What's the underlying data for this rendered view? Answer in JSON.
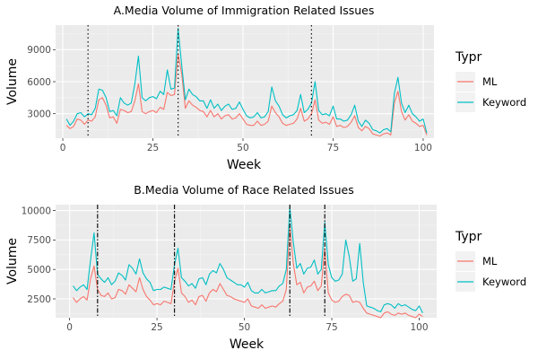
{
  "chart_data": [
    {
      "type": "line",
      "title": "A.Media Volume of Immigration Related Issues",
      "xlabel": "Week",
      "ylabel": "Volume",
      "xlim": [
        -2,
        103
      ],
      "ylim": [
        700,
        11300
      ],
      "xticks": [
        0,
        25,
        50,
        75,
        100
      ],
      "yticks": [
        3000,
        6000,
        9000
      ],
      "legend_title": "Typr",
      "legend_position": "right",
      "grid": true,
      "vlines": {
        "x": [
          7,
          32,
          69
        ],
        "style": "dotted"
      },
      "series": [
        {
          "name": "ML",
          "color": "#F8766D",
          "values": [
            1900,
            1600,
            1800,
            2500,
            2400,
            2000,
            2400,
            2300,
            2700,
            4300,
            4500,
            3800,
            2600,
            2700,
            2100,
            3400,
            3300,
            3100,
            3200,
            4200,
            5800,
            3200,
            3000,
            3200,
            3300,
            3100,
            3600,
            3400,
            5000,
            4700,
            4800,
            8600,
            6700,
            3500,
            4200,
            3800,
            3600,
            3300,
            3200,
            2700,
            3300,
            2700,
            3000,
            2500,
            2800,
            2900,
            2500,
            2600,
            3000,
            2500,
            2000,
            1900,
            1900,
            2300,
            1900,
            2000,
            2300,
            3700,
            3100,
            2700,
            2100,
            1900,
            2000,
            2100,
            2500,
            3500,
            2300,
            2500,
            3000,
            4300,
            2400,
            2100,
            2200,
            2000,
            2700,
            1800,
            1900,
            1700,
            1800,
            2200,
            2800,
            1700,
            1400,
            1800,
            1600,
            1100,
            1000,
            900,
            1100,
            1200,
            1000,
            4000,
            5100,
            3200,
            2400,
            2900,
            2300,
            2100,
            1800,
            1900,
            1000
          ]
        },
        {
          "name": "Keyword",
          "color": "#00BFC4",
          "values": [
            2500,
            1900,
            2300,
            3000,
            3100,
            2700,
            3000,
            2900,
            3500,
            5300,
            5200,
            4500,
            3200,
            3300,
            2800,
            4500,
            4000,
            3800,
            4000,
            5800,
            8400,
            4500,
            4200,
            4500,
            4600,
            4400,
            5100,
            4800,
            7100,
            5300,
            5400,
            11000,
            7500,
            4300,
            5300,
            4800,
            4600,
            4200,
            4200,
            3500,
            4300,
            3500,
            3900,
            3300,
            3700,
            3900,
            3400,
            3500,
            4100,
            3400,
            2800,
            2600,
            2700,
            3100,
            2600,
            2700,
            3200,
            5500,
            4200,
            3700,
            2900,
            2600,
            2800,
            2900,
            3300,
            4800,
            3100,
            3400,
            4000,
            6000,
            3300,
            2900,
            3000,
            2800,
            3700,
            2500,
            2500,
            2300,
            2400,
            2900,
            3800,
            2300,
            1800,
            2400,
            2100,
            1500,
            1400,
            1200,
            1500,
            1600,
            1300,
            4900,
            6400,
            4000,
            3100,
            3800,
            3000,
            2700,
            2300,
            2500,
            1200
          ]
        }
      ]
    },
    {
      "type": "line",
      "title": "B.Media Volume of Race Related Issues",
      "xlabel": "Week",
      "ylabel": "Volume",
      "xlim": [
        -4,
        105
      ],
      "ylim": [
        900,
        10500
      ],
      "xticks": [
        0,
        25,
        50,
        75,
        100
      ],
      "yticks": [
        2500,
        5000,
        7500,
        10000
      ],
      "legend_title": "Typr",
      "legend_position": "right",
      "grid": true,
      "vlines": {
        "x": [
          8,
          30,
          63,
          73
        ],
        "style": "dashdot"
      },
      "series": [
        {
          "name": "ML",
          "color": "#F8766D",
          "values": [
            2600,
            2200,
            2500,
            2700,
            2400,
            4200,
            5300,
            3300,
            2800,
            2700,
            3000,
            2500,
            2600,
            3300,
            3200,
            2900,
            3700,
            3400,
            3100,
            4300,
            3300,
            2700,
            2400,
            2000,
            2100,
            2000,
            2300,
            2200,
            2100,
            4000,
            5100,
            3000,
            2700,
            2200,
            2400,
            2000,
            2700,
            2800,
            2300,
            3000,
            3300,
            3100,
            3800,
            3300,
            2800,
            2700,
            2500,
            2400,
            2300,
            2200,
            2500,
            1900,
            1800,
            1700,
            2000,
            1700,
            1800,
            1900,
            1800,
            2100,
            2300,
            3300,
            8700,
            5500,
            3700,
            3900,
            3000,
            3500,
            3600,
            4000,
            3200,
            3600,
            6800,
            3000,
            2400,
            2200,
            2300,
            2700,
            2900,
            2800,
            2200,
            2300,
            2200,
            1700,
            1300,
            1200,
            1100,
            1000,
            900,
            1300,
            1400,
            1200,
            1100,
            1300,
            1200,
            1300,
            1100,
            1000,
            900,
            1200,
            1000
          ]
        },
        {
          "name": "Keyword",
          "color": "#00BFC4",
          "values": [
            3600,
            3200,
            3500,
            3700,
            3300,
            5800,
            8100,
            4600,
            4200,
            3900,
            4300,
            3700,
            4000,
            4700,
            4500,
            4100,
            5400,
            5100,
            4600,
            5900,
            4700,
            4200,
            3900,
            3200,
            3300,
            3300,
            3500,
            3400,
            3300,
            5400,
            6800,
            4300,
            4000,
            3600,
            3800,
            3400,
            4200,
            4300,
            3700,
            4600,
            4900,
            4700,
            5500,
            5000,
            4300,
            4100,
            3900,
            3700,
            3700,
            3500,
            3900,
            3200,
            3000,
            3000,
            3300,
            3000,
            3100,
            3200,
            3200,
            3600,
            3800,
            5000,
            10300,
            7300,
            5100,
            5500,
            4600,
            5100,
            5200,
            5800,
            4600,
            5000,
            9000,
            5400,
            4300,
            4000,
            4100,
            4600,
            7500,
            6100,
            4000,
            4200,
            7200,
            3900,
            1900,
            1800,
            1700,
            1500,
            1400,
            2000,
            2100,
            2000,
            1700,
            2100,
            1900,
            2000,
            1800,
            1600,
            1500,
            1900,
            1300
          ]
        }
      ]
    }
  ]
}
